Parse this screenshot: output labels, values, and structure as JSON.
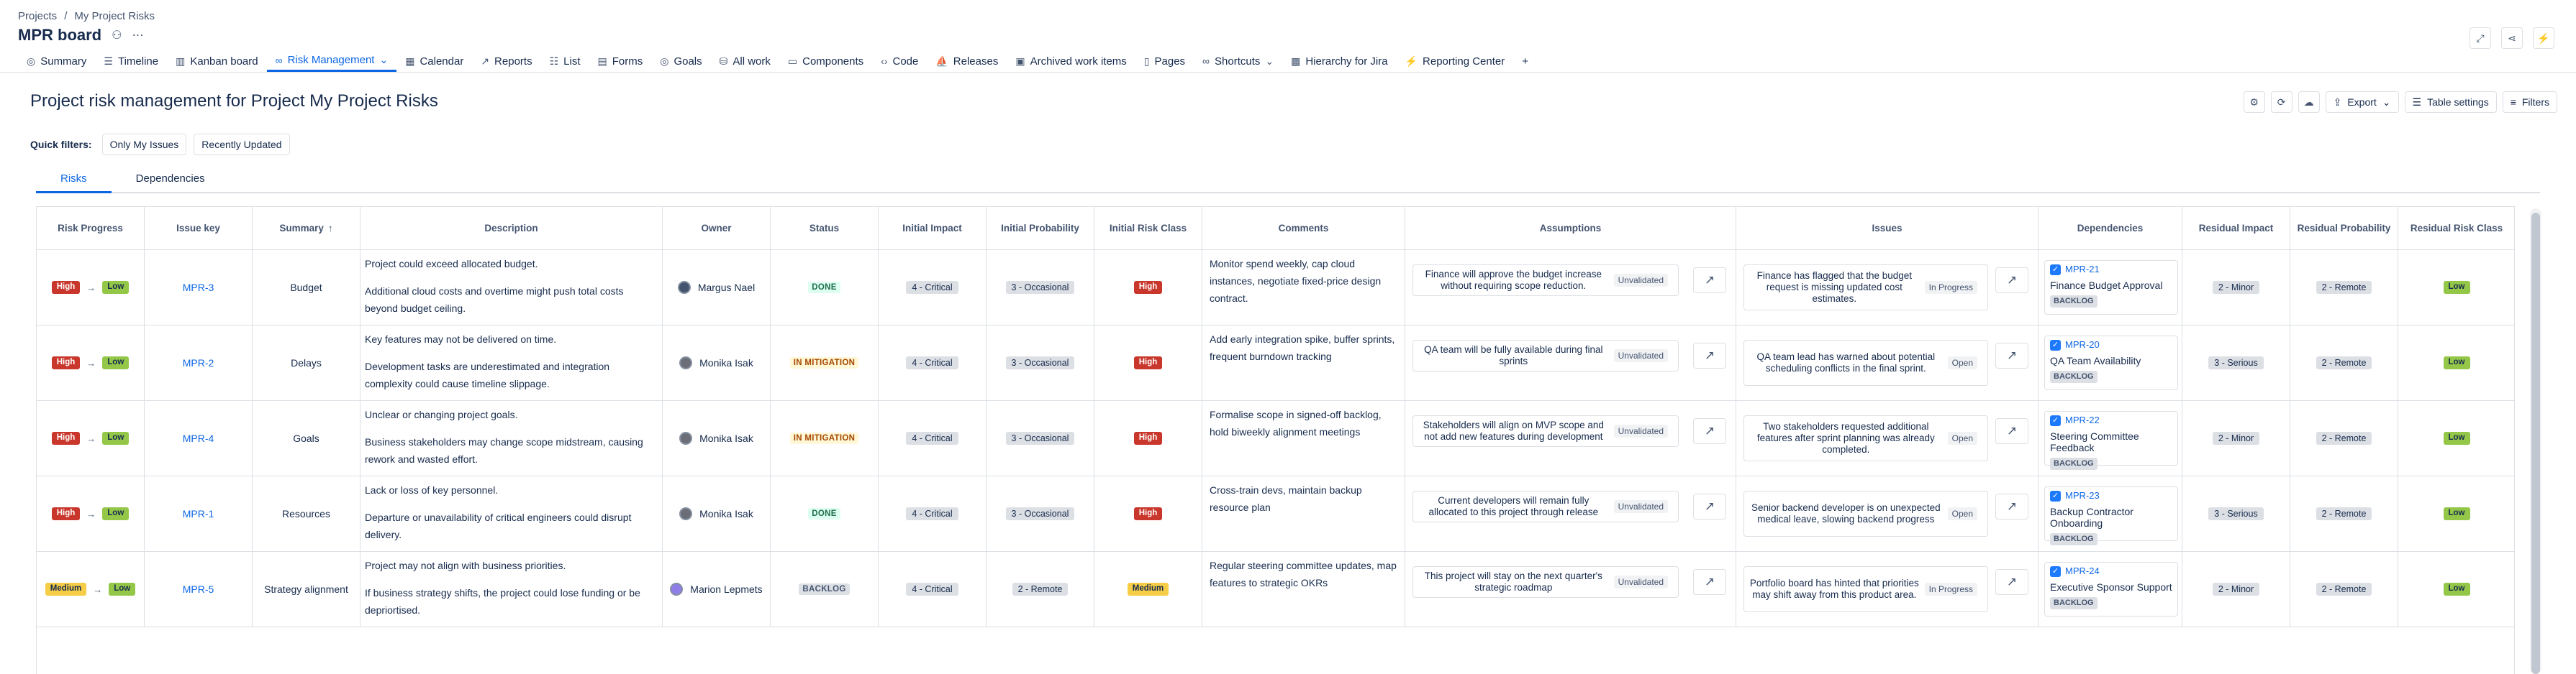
{
  "breadcrumbs": [
    "Projects",
    "/",
    "My Project Risks"
  ],
  "board": {
    "title": "MPR board"
  },
  "tabs": [
    {
      "label": "Summary",
      "icon": "globe-icon"
    },
    {
      "label": "Timeline",
      "icon": "timeline-icon"
    },
    {
      "label": "Kanban board",
      "icon": "board-icon"
    },
    {
      "label": "Risk Management",
      "icon": "link-icon",
      "active": true
    },
    {
      "label": "Calendar",
      "icon": "calendar-icon"
    },
    {
      "label": "Reports",
      "icon": "chart-icon"
    },
    {
      "label": "List",
      "icon": "list-icon"
    },
    {
      "label": "Forms",
      "icon": "form-icon"
    },
    {
      "label": "Goals",
      "icon": "target-icon"
    },
    {
      "label": "All work",
      "icon": "stack-icon"
    },
    {
      "label": "Components",
      "icon": "component-icon"
    },
    {
      "label": "Code",
      "icon": "code-icon"
    },
    {
      "label": "Releases",
      "icon": "ship-icon"
    },
    {
      "label": "Archived work items",
      "icon": "archive-icon"
    },
    {
      "label": "Pages",
      "icon": "page-icon"
    },
    {
      "label": "Shortcuts",
      "icon": "shortcut-icon"
    },
    {
      "label": "Hierarchy for Jira",
      "icon": "hierarchy-icon"
    },
    {
      "label": "Reporting Center",
      "icon": "bolt-icon"
    }
  ],
  "page": {
    "title": "Project risk management for Project My Project Risks"
  },
  "actions": {
    "export": "Export",
    "table_settings": "Table settings",
    "filters": "Filters"
  },
  "quick_filters": {
    "label": "Quick filters:",
    "items": [
      "Only My Issues",
      "Recently Updated"
    ]
  },
  "subtabs": [
    "Risks",
    "Dependencies"
  ],
  "columns": [
    "Risk Progress",
    "Issue key",
    "Summary",
    "Description",
    "Owner",
    "Status",
    "Initial Impact",
    "Initial Probability",
    "Initial Risk Class",
    "Comments",
    "Assumptions",
    "Issues",
    "Dependencies",
    "Residual Impact",
    "Residual Probability",
    "Residual Risk Class"
  ],
  "sort_indicator": "↑",
  "rows": [
    {
      "from": "High",
      "to": "Low",
      "key": "MPR-3",
      "summary": "Budget",
      "desc": [
        "Project could exceed allocated budget.",
        "Additional cloud costs and overtime might push total costs beyond budget ceiling."
      ],
      "owner": "Margus Nael",
      "status": "DONE",
      "status_kind": "done",
      "impact": "4 - Critical",
      "prob": "3 - Occasional",
      "riskclass": "High",
      "comments": "Monitor spend weekly, cap cloud instances, negotiate fixed-price design contract.",
      "assumption": "Finance will approve the budget increase without requiring scope reduction.",
      "assumption_state": "Unvalidated",
      "issue": "Finance has flagged that the budget request is missing updated cost estimates.",
      "issue_state": "In Progress",
      "dep_key": "MPR-21",
      "dep_summary": "Finance Budget Approval",
      "dep_status": "BACKLOG",
      "res_impact": "2 - Minor",
      "res_prob": "2 - Remote",
      "res_class": "Low"
    },
    {
      "from": "High",
      "to": "Low",
      "key": "MPR-2",
      "summary": "Delays",
      "desc": [
        "Key features may not be delivered on time.",
        "Development tasks are underestimated and integration complexity could cause timeline slippage."
      ],
      "owner": "Monika Isak",
      "status": "IN MITIGATION",
      "status_kind": "mit",
      "impact": "4 - Critical",
      "prob": "3 - Occasional",
      "riskclass": "High",
      "comments": "Add early integration spike, buffer sprints, frequent burndown tracking",
      "assumption": "QA team will be fully available during final sprints",
      "assumption_state": "Unvalidated",
      "issue": "QA team lead has warned about potential scheduling conflicts in the final sprint.",
      "issue_state": "Open",
      "dep_key": "MPR-20",
      "dep_summary": "QA Team Availability",
      "dep_status": "BACKLOG",
      "res_impact": "3 - Serious",
      "res_prob": "2 - Remote",
      "res_class": "Low"
    },
    {
      "from": "High",
      "to": "Low",
      "key": "MPR-4",
      "summary": "Goals",
      "desc": [
        "Unclear or changing project goals.",
        "Business stakeholders may change scope midstream, causing rework and wasted effort."
      ],
      "owner": "Monika Isak",
      "status": "IN MITIGATION",
      "status_kind": "mit",
      "impact": "4 - Critical",
      "prob": "3 - Occasional",
      "riskclass": "High",
      "comments": "Formalise scope in signed-off backlog, hold biweekly alignment meetings",
      "assumption": "Stakeholders will align on MVP scope and not add new features during development",
      "assumption_state": "Unvalidated",
      "issue": "Two stakeholders requested additional features after sprint planning was already completed.",
      "issue_state": "Open",
      "dep_key": "MPR-22",
      "dep_summary": "Steering Committee Feedback",
      "dep_status": "BACKLOG",
      "res_impact": "2 - Minor",
      "res_prob": "2 - Remote",
      "res_class": "Low"
    },
    {
      "from": "High",
      "to": "Low",
      "key": "MPR-1",
      "summary": "Resources",
      "desc": [
        "Lack or loss of key personnel.",
        "Departure or unavailability of critical engineers could disrupt delivery."
      ],
      "owner": "Monika Isak",
      "status": "DONE",
      "status_kind": "done",
      "impact": "4 - Critical",
      "prob": "3 - Occasional",
      "riskclass": "High",
      "comments": "Cross-train devs, maintain backup resource plan",
      "assumption": "Current developers will remain fully allocated to this project through release",
      "assumption_state": "Unvalidated",
      "issue": "Senior backend developer is on unexpected medical leave, slowing backend progress",
      "issue_state": "Open",
      "dep_key": "MPR-23",
      "dep_summary": "Backup Contractor Onboarding",
      "dep_status": "BACKLOG",
      "res_impact": "3 - Serious",
      "res_prob": "2 - Remote",
      "res_class": "Low"
    },
    {
      "from": "Medium",
      "to": "Low",
      "key": "MPR-5",
      "summary": "Strategy alignment",
      "desc": [
        "Project may not align with business priorities.",
        "If business strategy shifts, the project could lose funding or be depriortised."
      ],
      "owner": "Marion Lepmets",
      "status": "BACKLOG",
      "status_kind": "back",
      "impact": "4 - Critical",
      "prob": "2 - Remote",
      "riskclass": "Medium",
      "comments": "Regular steering committee updates, map features to strategic OKRs",
      "assumption": "This project will stay on the next quarter's strategic roadmap",
      "assumption_state": "Unvalidated",
      "issue": "Portfolio board has hinted that priorities may shift away from this product area.",
      "issue_state": "In Progress",
      "dep_key": "MPR-24",
      "dep_summary": "Executive Sponsor Support",
      "dep_status": "BACKLOG",
      "res_impact": "2 - Minor",
      "res_prob": "2 - Remote",
      "res_class": "Low"
    }
  ],
  "colors": {
    "accent": "#0c66e4",
    "high": "#c9372c",
    "low": "#94c748",
    "medium": "#f5cd47"
  }
}
